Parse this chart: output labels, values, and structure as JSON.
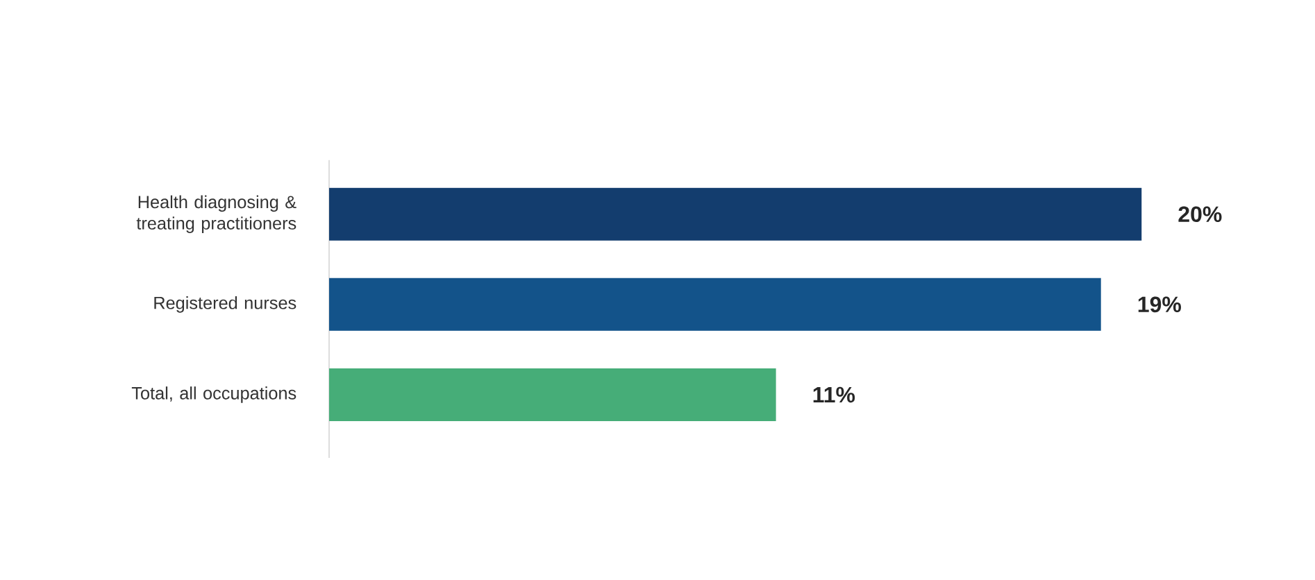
{
  "chart_data": {
    "type": "bar",
    "orientation": "horizontal",
    "categories": [
      "Health diagnosing & treating practitioners",
      "Registered nurses",
      "Total, all occupations"
    ],
    "values": [
      20,
      19,
      11
    ],
    "colors": [
      "#133d6e",
      "#13538a",
      "#46ad78"
    ],
    "value_labels": [
      "20%",
      "19%",
      "11%"
    ]
  }
}
